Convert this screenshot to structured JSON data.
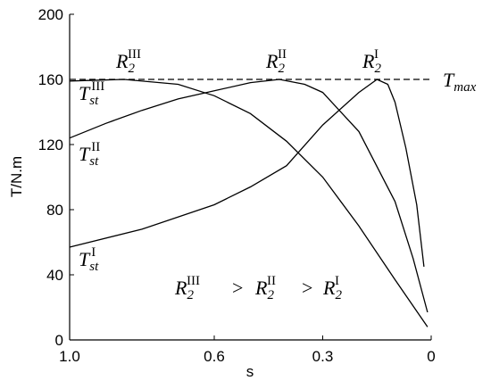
{
  "chart_data": {
    "type": "line",
    "x_label": "s",
    "y_label": "T/N.m",
    "xlim": [
      1,
      0
    ],
    "ylim": [
      0,
      200
    ],
    "xticks": [
      {
        "value": 1,
        "label": "1.0"
      },
      0.6,
      0.3,
      0
    ],
    "yticks": [
      0,
      40,
      80,
      120,
      160,
      200
    ],
    "reference_line": {
      "y": 160,
      "dashed": true,
      "color": "#000000"
    },
    "series": [
      {
        "color": "#000000",
        "x": [
          1,
          0.8,
          0.6,
          0.5,
          0.4,
          0.3,
          0.2,
          0.15,
          0.12,
          0.1,
          0.07,
          0.04,
          0.02
        ],
        "values": [
          57,
          68,
          83,
          94,
          107,
          132,
          152,
          160,
          157,
          146,
          118,
          83,
          45
        ]
      },
      {
        "color": "#000000",
        "x": [
          1,
          0.9,
          0.8,
          0.7,
          0.6,
          0.5,
          0.42,
          0.35,
          0.3,
          0.2,
          0.1,
          0.05,
          0.01
        ],
        "values": [
          124,
          133,
          141,
          148,
          153,
          158,
          160,
          157,
          152,
          128,
          85,
          50,
          17
        ]
      },
      {
        "color": "#000000",
        "x": [
          1,
          0.85,
          0.7,
          0.6,
          0.5,
          0.4,
          0.3,
          0.2,
          0.1,
          0.01
        ],
        "values": [
          159,
          160,
          157,
          150,
          139,
          122,
          100,
          70,
          37,
          8
        ]
      }
    ],
    "annotations": [
      {
        "base": "R",
        "sub": "2",
        "sup": "III"
      },
      {
        "base": "R",
        "sub": "2",
        "sup": "II"
      },
      {
        "base": "R",
        "sub": "2",
        "sup": "I"
      },
      {
        "base": "T",
        "sub": "max"
      },
      {
        "base": "T",
        "sub": "st",
        "sup": "III"
      },
      {
        "base": "T",
        "sub": "st",
        "sup": "II"
      },
      {
        "base": "T",
        "sub": "st",
        "sup": "I"
      }
    ],
    "inequality": {
      "operator": ">",
      "terms": [
        {
          "base": "R",
          "sub": "2",
          "sup": "III"
        },
        {
          "base": "R",
          "sub": "2",
          "sup": "II"
        },
        {
          "base": "R",
          "sub": "2",
          "sup": "I"
        }
      ]
    }
  }
}
